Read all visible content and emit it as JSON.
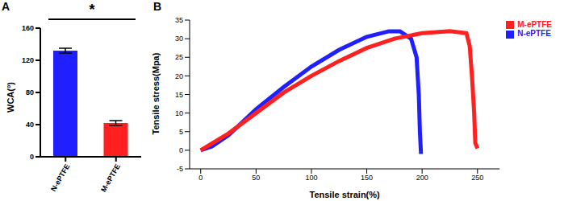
{
  "chart_data": [
    {
      "type": "bar",
      "title": "A",
      "categories": [
        "N-ePTFE",
        "M-ePTFE"
      ],
      "values": [
        132,
        42
      ],
      "errors": [
        3,
        3
      ],
      "colors": [
        "#1f1fff",
        "#ff2020"
      ],
      "y_label": "WCA(°)",
      "ylim": [
        0,
        160
      ],
      "yticks": [
        0,
        40,
        80,
        120,
        160
      ],
      "annotation": "*",
      "grid": false
    },
    {
      "type": "line",
      "title": "B",
      "x_label": "Tensile strain(%)",
      "y_label": "Tensile stress(Mpa)",
      "xlim": [
        -10,
        270
      ],
      "xticks": [
        0,
        50,
        100,
        150,
        200,
        250
      ],
      "ylim": [
        -5,
        35
      ],
      "yticks": [
        -5,
        0,
        5,
        10,
        15,
        20,
        25,
        30,
        35
      ],
      "grid": false,
      "legend": "top-right",
      "series": [
        {
          "name": "N-ePTFE",
          "color": "#1f1fff",
          "x": [
            0,
            10,
            25,
            50,
            75,
            100,
            125,
            150,
            170,
            180,
            190,
            195,
            197,
            198,
            199
          ],
          "values": [
            0,
            1,
            4,
            11,
            17,
            22.5,
            27,
            30.5,
            32,
            32,
            30,
            25,
            15,
            5,
            -1
          ]
        },
        {
          "name": "M-ePTFE",
          "color": "#ff2020",
          "x": [
            0,
            25,
            50,
            75,
            100,
            125,
            150,
            175,
            200,
            225,
            240,
            243,
            245,
            247,
            248,
            250
          ],
          "values": [
            0,
            4.5,
            10,
            15.5,
            20,
            24,
            27.5,
            30,
            31.5,
            32,
            31.5,
            28,
            20,
            10,
            2,
            0.5
          ]
        }
      ]
    }
  ]
}
